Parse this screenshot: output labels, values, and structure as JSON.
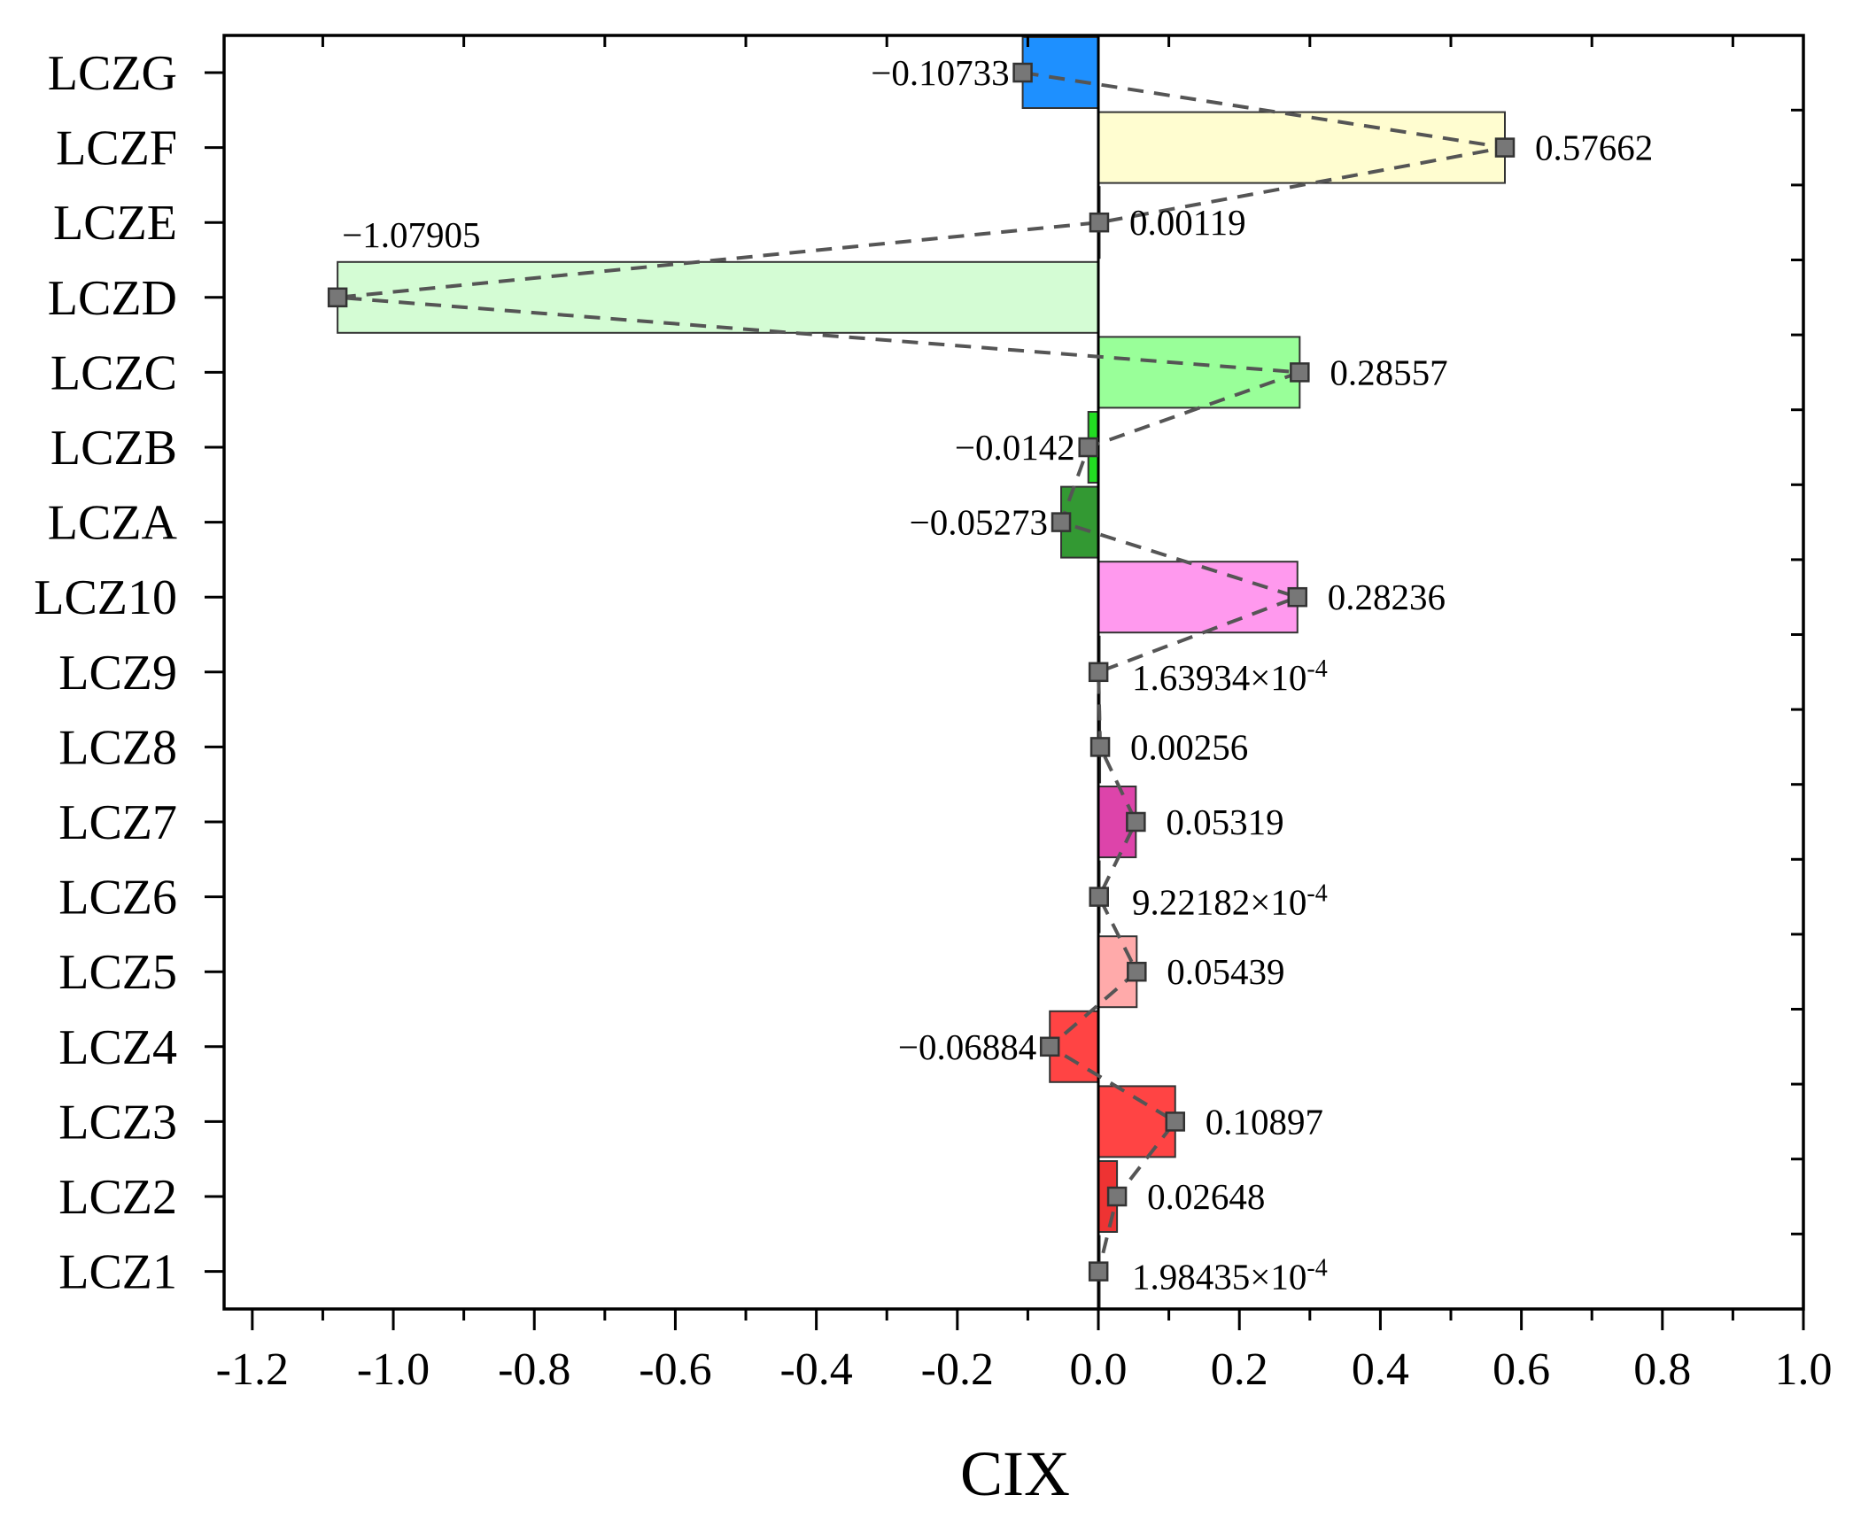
{
  "chart_data": {
    "type": "bar",
    "orientation": "horizontal",
    "title": "",
    "xlabel": "CIX",
    "ylabel": "",
    "xlim": [
      -1.24,
      1.0
    ],
    "x_ticks": [
      -1.2,
      -1.0,
      -0.8,
      -0.6,
      -0.4,
      -0.2,
      0.0,
      0.2,
      0.4,
      0.6,
      0.8,
      1.0
    ],
    "x_tick_labels": [
      "-1.2",
      "-1.0",
      "-0.8",
      "-0.6",
      "-0.4",
      "-0.2",
      "0.0",
      "0.2",
      "0.4",
      "0.6",
      "0.8",
      "1.0"
    ],
    "grid": false,
    "legend": "none",
    "line_style": "dashed connector through bar ends with square markers",
    "categories": [
      {
        "name": "LCZG",
        "value": -0.10733,
        "label": "−0.10733",
        "color": "#1E90FF"
      },
      {
        "name": "LCZF",
        "value": 0.57662,
        "label": "0.57662",
        "color": "#FFFDD0"
      },
      {
        "name": "LCZE",
        "value": 0.00119,
        "label": "0.00119",
        "color": "#E8F5E0"
      },
      {
        "name": "LCZD",
        "value": -1.07905,
        "label": "−1.07905",
        "color": "#D4FCD4"
      },
      {
        "name": "LCZC",
        "value": 0.28557,
        "label": "0.28557",
        "color": "#99FF99"
      },
      {
        "name": "LCZB",
        "value": -0.0142,
        "label": "−0.0142",
        "color": "#22DD22"
      },
      {
        "name": "LCZA",
        "value": -0.05273,
        "label": "−0.05273",
        "color": "#339933"
      },
      {
        "name": "LCZ10",
        "value": 0.28236,
        "label": "0.28236",
        "color": "#FF99EE"
      },
      {
        "name": "LCZ9",
        "value": 0.000163934,
        "label": "1.63934×10",
        "exponent": "-4",
        "color": "#FFDDEE"
      },
      {
        "name": "LCZ8",
        "value": 0.00256,
        "label": "0.00256",
        "color": "#F0F0F0"
      },
      {
        "name": "LCZ7",
        "value": 0.05319,
        "label": "0.05319",
        "color": "#DD44AA"
      },
      {
        "name": "LCZ6",
        "value": 0.000922182,
        "label": "9.22182×10",
        "exponent": "-4",
        "color": "#FF8888"
      },
      {
        "name": "LCZ5",
        "value": 0.05439,
        "label": "0.05439",
        "color": "#FFAAAA"
      },
      {
        "name": "LCZ4",
        "value": -0.06884,
        "label": "−0.06884",
        "color": "#FF4444"
      },
      {
        "name": "LCZ3",
        "value": 0.10897,
        "label": "0.10897",
        "color": "#FF4444"
      },
      {
        "name": "LCZ2",
        "value": 0.02648,
        "label": "0.02648",
        "color": "#EE3333"
      },
      {
        "name": "LCZ1",
        "value": 0.000198435,
        "label": "1.98435×10",
        "exponent": "-4",
        "color": "#EE3333"
      }
    ]
  }
}
